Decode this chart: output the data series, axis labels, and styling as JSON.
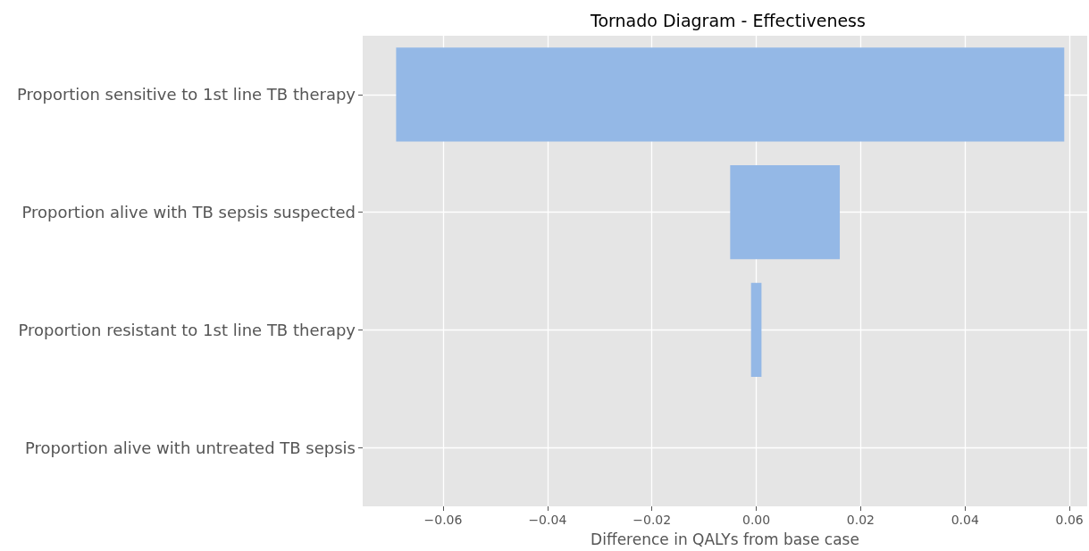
{
  "chart_data": {
    "type": "bar",
    "orientation": "horizontal",
    "title": "Tornado Diagram - Effectiveness",
    "xlabel": "Difference in QALYs from base case",
    "categories": [
      "Proportion sensitive to 1st line TB therapy",
      "Proportion alive with TB sepsis suspected",
      "Proportion resistant to 1st line TB therapy",
      "Proportion alive with untreated TB sepsis"
    ],
    "base": [
      -0.069,
      -0.005,
      -0.001,
      null
    ],
    "values": [
      0.128,
      0.021,
      0.002,
      null
    ],
    "color": "#94b8e6",
    "xlim": [
      -0.0754,
      0.0634
    ],
    "xticks": [
      {
        "value": -0.06,
        "label": "−0.06"
      },
      {
        "value": -0.04,
        "label": "−0.04"
      },
      {
        "value": -0.02,
        "label": "−0.02"
      },
      {
        "value": 0,
        "label": "0.00"
      },
      {
        "value": 0.02,
        "label": "0.02"
      },
      {
        "value": 0.04,
        "label": "0.04"
      },
      {
        "value": 0.06,
        "label": "0.06"
      }
    ],
    "grid": true
  }
}
